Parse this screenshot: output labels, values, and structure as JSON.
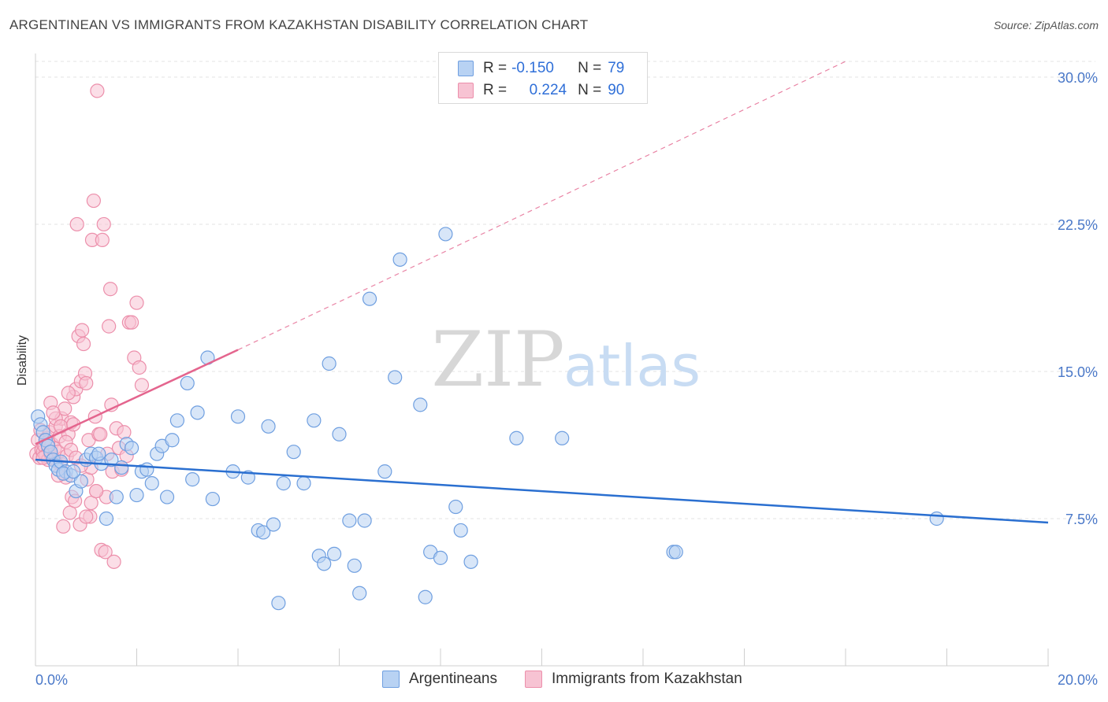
{
  "header": {
    "title": "ARGENTINEAN VS IMMIGRANTS FROM KAZAKHSTAN DISABILITY CORRELATION CHART",
    "source": "Source: ZipAtlas.com"
  },
  "legend_box": {
    "rows": [
      {
        "r_label": "R =",
        "r_value": "-0.150",
        "n_label": "N =",
        "n_value": "79"
      },
      {
        "r_label": "R =",
        "r_value": "0.224",
        "n_label": "N =",
        "n_value": "90"
      }
    ]
  },
  "watermark": {
    "part1": "ZIP",
    "part2": "atlas"
  },
  "bottom_legend": {
    "series1": "Argentineans",
    "series2": "Immigrants from Kazakhstan"
  },
  "colors": {
    "blue_fill": "#b8d2f3",
    "blue_stroke": "#6f9fe0",
    "blue_line": "#2a6fd0",
    "pink_fill": "#f7c3d3",
    "pink_stroke": "#ec8fab",
    "pink_line": "#e4658e",
    "axis_text": "#4a78c8",
    "grid": "#e3e3e3"
  },
  "chart_data": {
    "type": "scatter",
    "title": "ARGENTINEAN VS IMMIGRANTS FROM KAZAKHSTAN DISABILITY CORRELATION CHART",
    "xlabel": "",
    "ylabel": "Disability",
    "xlim": [
      0,
      20
    ],
    "ylim": [
      0,
      30.8
    ],
    "x_tick_labels": [
      "0.0%",
      "20.0%"
    ],
    "y_ticks": [
      7.5,
      15.0,
      22.5,
      30.0
    ],
    "y_tick_labels": [
      "7.5%",
      "15.0%",
      "22.5%",
      "30.0%"
    ],
    "grid": "horizontal dashed",
    "legend_position": "top-center",
    "series": [
      {
        "name": "Argentineans",
        "color": "#6f9fe0",
        "r": -0.15,
        "n": 79,
        "trend": {
          "x": [
            0,
            20
          ],
          "y": [
            10.5,
            7.3
          ],
          "style": "solid"
        },
        "points": [
          [
            0.05,
            12.7
          ],
          [
            0.1,
            12.3
          ],
          [
            0.15,
            11.9
          ],
          [
            0.2,
            11.5
          ],
          [
            0.25,
            11.2
          ],
          [
            0.3,
            10.9
          ],
          [
            0.35,
            10.5
          ],
          [
            0.4,
            10.2
          ],
          [
            0.45,
            10.0
          ],
          [
            0.5,
            10.4
          ],
          [
            0.6,
            9.9
          ],
          [
            0.7,
            9.7
          ],
          [
            0.8,
            8.9
          ],
          [
            0.9,
            9.4
          ],
          [
            1.0,
            10.5
          ],
          [
            1.1,
            10.8
          ],
          [
            1.2,
            10.6
          ],
          [
            1.3,
            10.3
          ],
          [
            1.4,
            7.5
          ],
          [
            1.5,
            10.5
          ],
          [
            1.6,
            8.6
          ],
          [
            1.7,
            10.1
          ],
          [
            1.8,
            11.3
          ],
          [
            1.9,
            11.1
          ],
          [
            2.0,
            8.7
          ],
          [
            2.1,
            9.9
          ],
          [
            2.2,
            10.0
          ],
          [
            2.3,
            9.3
          ],
          [
            2.4,
            10.8
          ],
          [
            2.5,
            11.2
          ],
          [
            2.6,
            8.6
          ],
          [
            2.7,
            11.5
          ],
          [
            2.8,
            12.5
          ],
          [
            3.0,
            14.4
          ],
          [
            3.1,
            9.5
          ],
          [
            3.2,
            12.9
          ],
          [
            3.4,
            15.7
          ],
          [
            3.5,
            8.5
          ],
          [
            3.9,
            9.9
          ],
          [
            4.0,
            12.7
          ],
          [
            4.2,
            9.6
          ],
          [
            4.4,
            6.9
          ],
          [
            4.5,
            6.8
          ],
          [
            4.6,
            12.2
          ],
          [
            4.7,
            7.2
          ],
          [
            4.8,
            3.2
          ],
          [
            4.9,
            9.3
          ],
          [
            5.1,
            10.9
          ],
          [
            5.3,
            9.3
          ],
          [
            5.5,
            12.5
          ],
          [
            5.6,
            5.6
          ],
          [
            5.7,
            5.2
          ],
          [
            5.8,
            15.4
          ],
          [
            5.9,
            5.7
          ],
          [
            6.0,
            11.8
          ],
          [
            6.2,
            7.4
          ],
          [
            6.3,
            5.1
          ],
          [
            6.4,
            3.7
          ],
          [
            6.5,
            7.4
          ],
          [
            6.6,
            18.7
          ],
          [
            6.9,
            9.9
          ],
          [
            7.1,
            14.7
          ],
          [
            7.2,
            20.7
          ],
          [
            7.6,
            13.3
          ],
          [
            7.7,
            3.5
          ],
          [
            7.8,
            5.8
          ],
          [
            8.0,
            5.5
          ],
          [
            8.1,
            22.0
          ],
          [
            8.3,
            8.1
          ],
          [
            8.4,
            6.9
          ],
          [
            8.6,
            5.3
          ],
          [
            9.5,
            11.6
          ],
          [
            10.4,
            11.6
          ],
          [
            12.6,
            5.8
          ],
          [
            12.65,
            5.8
          ],
          [
            17.8,
            7.5
          ],
          [
            0.55,
            9.8
          ],
          [
            0.75,
            9.9
          ],
          [
            1.25,
            10.8
          ]
        ]
      },
      {
        "name": "Immigrants from Kazakhstan",
        "color": "#ec8fab",
        "r": 0.224,
        "n": 90,
        "trend": {
          "x": [
            0,
            4.0
          ],
          "y": [
            11.3,
            16.1
          ],
          "style": "solid"
        },
        "trend_extension": {
          "x": [
            4.0,
            16.0
          ],
          "y": [
            16.1,
            30.8
          ],
          "style": "dashed"
        },
        "points": [
          [
            0.02,
            10.8
          ],
          [
            0.05,
            11.5
          ],
          [
            0.08,
            10.6
          ],
          [
            0.1,
            12.0
          ],
          [
            0.12,
            11.0
          ],
          [
            0.15,
            10.9
          ],
          [
            0.18,
            11.2
          ],
          [
            0.2,
            10.7
          ],
          [
            0.22,
            11.6
          ],
          [
            0.25,
            10.5
          ],
          [
            0.28,
            11.9
          ],
          [
            0.3,
            10.8
          ],
          [
            0.32,
            11.3
          ],
          [
            0.35,
            10.6
          ],
          [
            0.38,
            11.1
          ],
          [
            0.4,
            12.2
          ],
          [
            0.42,
            10.4
          ],
          [
            0.45,
            10.9
          ],
          [
            0.48,
            11.7
          ],
          [
            0.5,
            10.3
          ],
          [
            0.52,
            12.6
          ],
          [
            0.55,
            9.8
          ],
          [
            0.58,
            13.1
          ],
          [
            0.6,
            9.6
          ],
          [
            0.62,
            10.7
          ],
          [
            0.65,
            11.8
          ],
          [
            0.68,
            7.8
          ],
          [
            0.7,
            12.4
          ],
          [
            0.72,
            8.6
          ],
          [
            0.75,
            13.7
          ],
          [
            0.78,
            8.4
          ],
          [
            0.8,
            14.1
          ],
          [
            0.82,
            22.5
          ],
          [
            0.85,
            16.8
          ],
          [
            0.88,
            7.2
          ],
          [
            0.9,
            14.5
          ],
          [
            0.92,
            17.1
          ],
          [
            0.95,
            16.4
          ],
          [
            0.98,
            14.9
          ],
          [
            1.0,
            14.4
          ],
          [
            1.02,
            9.5
          ],
          [
            1.05,
            11.5
          ],
          [
            1.08,
            7.6
          ],
          [
            1.1,
            10.1
          ],
          [
            1.12,
            21.7
          ],
          [
            1.15,
            23.7
          ],
          [
            1.18,
            12.7
          ],
          [
            1.2,
            8.9
          ],
          [
            1.22,
            29.3
          ],
          [
            1.25,
            11.8
          ],
          [
            1.28,
            11.8
          ],
          [
            1.3,
            5.9
          ],
          [
            1.32,
            21.7
          ],
          [
            1.35,
            22.5
          ],
          [
            1.38,
            5.8
          ],
          [
            1.4,
            8.6
          ],
          [
            1.42,
            10.8
          ],
          [
            1.45,
            17.3
          ],
          [
            1.48,
            19.2
          ],
          [
            1.5,
            13.3
          ],
          [
            1.52,
            9.9
          ],
          [
            1.55,
            5.3
          ],
          [
            1.6,
            12.1
          ],
          [
            1.65,
            11.1
          ],
          [
            1.7,
            10.0
          ],
          [
            1.75,
            11.9
          ],
          [
            1.8,
            10.7
          ],
          [
            1.85,
            17.5
          ],
          [
            1.9,
            17.5
          ],
          [
            1.95,
            15.7
          ],
          [
            2.0,
            18.5
          ],
          [
            2.05,
            15.2
          ],
          [
            2.1,
            14.3
          ],
          [
            0.3,
            13.4
          ],
          [
            0.4,
            12.6
          ],
          [
            0.5,
            12.2
          ],
          [
            0.6,
            11.4
          ],
          [
            0.7,
            11.0
          ],
          [
            0.8,
            10.6
          ],
          [
            0.9,
            10.2
          ],
          [
            1.0,
            7.6
          ],
          [
            1.1,
            8.3
          ],
          [
            1.2,
            8.9
          ],
          [
            0.15,
            10.6
          ],
          [
            0.25,
            11.4
          ],
          [
            0.35,
            12.9
          ],
          [
            0.45,
            9.7
          ],
          [
            0.55,
            7.1
          ],
          [
            0.65,
            13.9
          ],
          [
            0.75,
            12.3
          ]
        ]
      }
    ]
  }
}
